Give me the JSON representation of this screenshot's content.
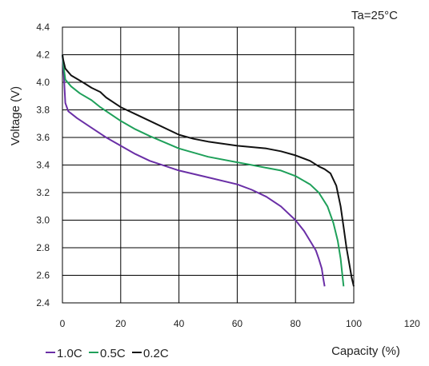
{
  "chart_data": {
    "type": "line",
    "annotation": "Ta=25°C",
    "xlabel": "Capacity (%)",
    "ylabel": "Voltage (V)",
    "xlim": [
      0,
      100
    ],
    "ylim": [
      2.4,
      4.4
    ],
    "xticks": [
      0,
      20,
      40,
      60,
      80,
      100,
      120
    ],
    "yticks": [
      4.4,
      4.2,
      4.0,
      3.8,
      3.6,
      3.4,
      3.2,
      3.0,
      2.8,
      2.6,
      2.4
    ],
    "grid": true,
    "legend_position": "bottom-left",
    "series": [
      {
        "name": "1.0C",
        "color": "#6a2fa6",
        "x": [
          0,
          0.5,
          1,
          2,
          5,
          10,
          15,
          20,
          25,
          30,
          40,
          50,
          60,
          65,
          70,
          75,
          80,
          83,
          85,
          87,
          88,
          89,
          89.5,
          90
        ],
        "y": [
          4.2,
          4.05,
          3.85,
          3.79,
          3.74,
          3.67,
          3.6,
          3.54,
          3.48,
          3.43,
          3.36,
          3.31,
          3.26,
          3.22,
          3.17,
          3.1,
          3.0,
          2.92,
          2.85,
          2.78,
          2.72,
          2.65,
          2.58,
          2.52
        ]
      },
      {
        "name": "0.5C",
        "color": "#1fa05a",
        "x": [
          0,
          0.5,
          1,
          3,
          6,
          10,
          13,
          20,
          25,
          30,
          40,
          50,
          60,
          65,
          70,
          75,
          80,
          85,
          88,
          91,
          93,
          94.5,
          95.5,
          96,
          96.5
        ],
        "y": [
          4.2,
          4.1,
          4.02,
          3.97,
          3.92,
          3.87,
          3.82,
          3.72,
          3.66,
          3.61,
          3.52,
          3.46,
          3.42,
          3.4,
          3.38,
          3.36,
          3.32,
          3.26,
          3.2,
          3.1,
          2.98,
          2.85,
          2.72,
          2.62,
          2.52
        ]
      },
      {
        "name": "0.2C",
        "color": "#111111",
        "x": [
          0,
          0.3,
          1,
          3,
          7,
          10,
          13,
          15,
          20,
          25,
          30,
          40,
          45,
          50,
          60,
          70,
          75,
          80,
          85,
          88,
          90,
          92,
          94,
          95.5,
          96.5,
          97.5,
          98.5,
          99.3,
          100
        ],
        "y": [
          4.2,
          4.16,
          4.1,
          4.05,
          4.0,
          3.96,
          3.93,
          3.89,
          3.82,
          3.77,
          3.72,
          3.62,
          3.59,
          3.57,
          3.54,
          3.52,
          3.5,
          3.47,
          3.43,
          3.39,
          3.37,
          3.34,
          3.25,
          3.1,
          2.95,
          2.8,
          2.68,
          2.58,
          2.52
        ]
      }
    ]
  }
}
